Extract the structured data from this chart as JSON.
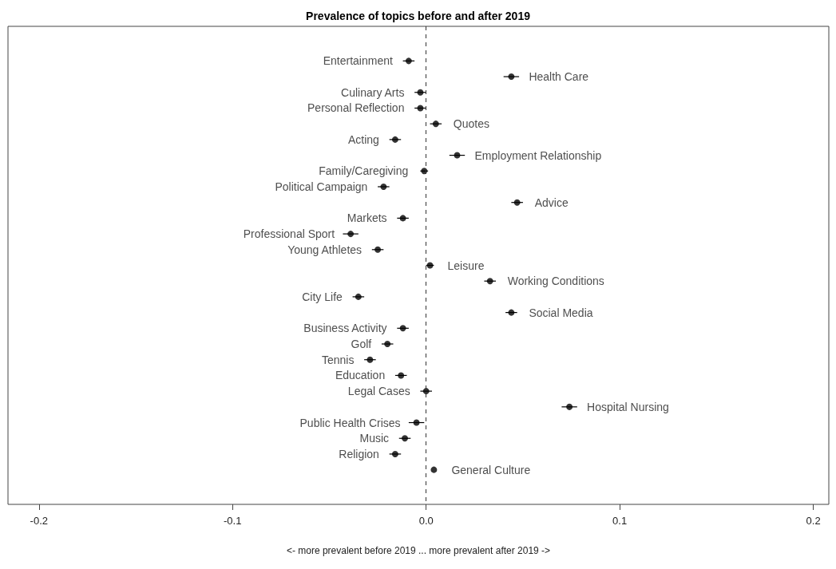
{
  "chart_data": {
    "type": "scatter",
    "title": "Prevalence of topics before and after 2019",
    "xlabel": "<- more prevalent before 2019 ... more prevalent after 2019 ->",
    "orientation": "horizontal",
    "categories": [
      "Entertainment",
      "Health Care",
      "Culinary Arts",
      "Personal Reflection",
      "Quotes",
      "Acting",
      "Employment Relationship",
      "Family/Caregiving",
      "Political Campaign",
      "Advice",
      "Markets",
      "Professional Sport",
      "Young Athletes",
      "Leisure",
      "Working Conditions",
      "City Life",
      "Social Media",
      "Business Activity",
      "Golf",
      "Tennis",
      "Education",
      "Legal Cases",
      "Hospital Nursing",
      "Public Health Crises",
      "Music",
      "Religion",
      "General Culture"
    ],
    "values": [
      -0.009,
      0.044,
      -0.003,
      -0.003,
      0.005,
      -0.016,
      0.016,
      -0.001,
      -0.022,
      0.047,
      -0.012,
      -0.039,
      -0.025,
      0.002,
      0.033,
      -0.035,
      0.044,
      -0.012,
      -0.02,
      -0.029,
      -0.013,
      0.0,
      0.074,
      -0.005,
      -0.011,
      -0.016,
      0.004
    ],
    "errors": [
      0.003,
      0.004,
      0.003,
      0.003,
      0.003,
      0.003,
      0.004,
      0.002,
      0.003,
      0.003,
      0.003,
      0.004,
      0.003,
      0.002,
      0.003,
      0.003,
      0.003,
      0.003,
      0.003,
      0.003,
      0.003,
      0.003,
      0.004,
      0.004,
      0.003,
      0.003,
      null
    ],
    "color": "#000000",
    "marker": "circle",
    "xlim": [
      -0.216,
      0.208
    ],
    "xticks": [
      -0.2,
      -0.1,
      {
        "value": 0,
        "label": "0.0"
      },
      0.1,
      0.2
    ],
    "ref_lines": [
      {
        "axis": "x",
        "value": 0,
        "label": null,
        "color": "#333333",
        "line_style": "dashed"
      }
    ],
    "grid": false
  }
}
